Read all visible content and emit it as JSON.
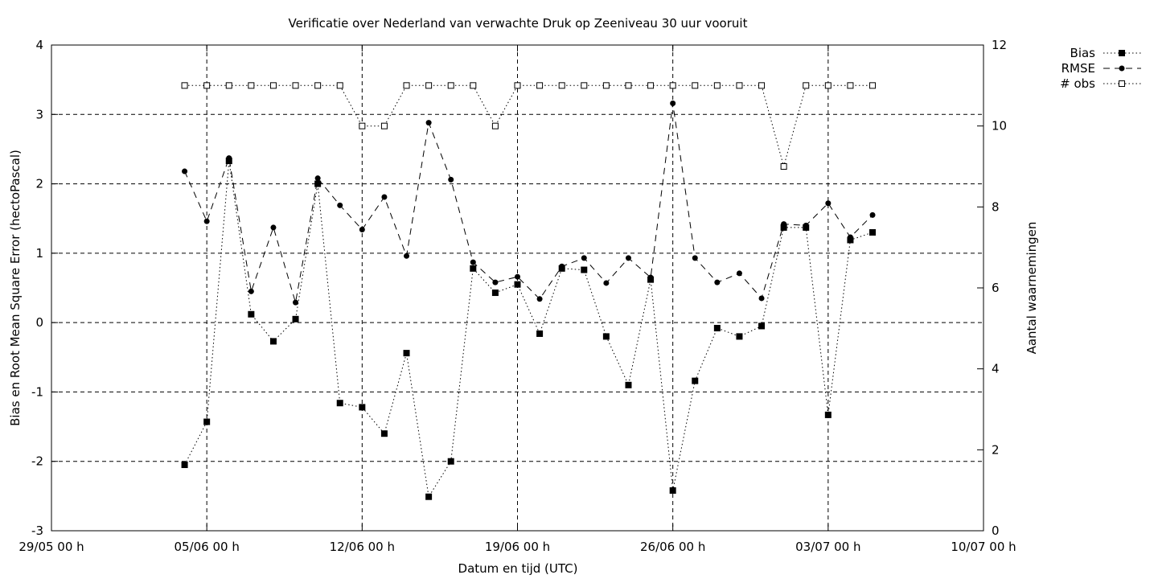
{
  "chart_data": {
    "type": "line",
    "title": "Verificatie over Nederland van verwachte Druk op Zeeniveau 30 uur vooruit",
    "xlabel": "Datum en tijd (UTC)",
    "ylabel": "Bias en Root Mean Square Error (hectoPascal)",
    "y2label": "Aantal waarnemingen",
    "xlim": [
      "2019-05-29",
      "2019-07-10"
    ],
    "ylim": [
      -3,
      4
    ],
    "y2lim": [
      0,
      12
    ],
    "grid": true,
    "legend_position": "top-right outside",
    "x_ticks": [
      {
        "date": "2019-05-29",
        "label": "29/05 00 h",
        "grid": false
      },
      {
        "date": "2019-06-05",
        "label": "05/06 00 h",
        "grid": true
      },
      {
        "date": "2019-06-12",
        "label": "12/06 00 h",
        "grid": true
      },
      {
        "date": "2019-06-19",
        "label": "19/06 00 h",
        "grid": true
      },
      {
        "date": "2019-06-26",
        "label": "26/06 00 h",
        "grid": true
      },
      {
        "date": "2019-07-03",
        "label": "03/07 00 h",
        "grid": true
      },
      {
        "date": "2019-07-10",
        "label": "10/07 00 h",
        "grid": false
      }
    ],
    "y_ticks": [
      {
        "value": -3,
        "label": "-3"
      },
      {
        "value": -2,
        "label": "-2"
      },
      {
        "value": -1,
        "label": "-1"
      },
      {
        "value": 0,
        "label": "0"
      },
      {
        "value": 1,
        "label": "1"
      },
      {
        "value": 2,
        "label": "2"
      },
      {
        "value": 3,
        "label": "3"
      },
      {
        "value": 4,
        "label": "4"
      }
    ],
    "y2_ticks": [
      {
        "value": 0,
        "label": "0"
      },
      {
        "value": 2,
        "label": "2"
      },
      {
        "value": 4,
        "label": "4"
      },
      {
        "value": 6,
        "label": "6"
      },
      {
        "value": 8,
        "label": "8"
      },
      {
        "value": 10,
        "label": "10"
      },
      {
        "value": 12,
        "label": "12"
      }
    ],
    "x": [
      "2019-06-04",
      "2019-06-05",
      "2019-06-06",
      "2019-06-07",
      "2019-06-08",
      "2019-06-09",
      "2019-06-10",
      "2019-06-11",
      "2019-06-12",
      "2019-06-13",
      "2019-06-14",
      "2019-06-15",
      "2019-06-16",
      "2019-06-17",
      "2019-06-18",
      "2019-06-19",
      "2019-06-20",
      "2019-06-21",
      "2019-06-22",
      "2019-06-23",
      "2019-06-24",
      "2019-06-25",
      "2019-06-26",
      "2019-06-27",
      "2019-06-28",
      "2019-06-29",
      "2019-06-30",
      "2019-07-01",
      "2019-07-02",
      "2019-07-03",
      "2019-07-04",
      "2019-07-05"
    ],
    "series": [
      {
        "name": "Bias",
        "axis": "y1",
        "marker": "filled-square",
        "line": "dotted",
        "values": [
          -2.05,
          -1.43,
          2.33,
          0.12,
          -0.27,
          0.05,
          2.0,
          -1.16,
          -1.22,
          -1.6,
          -0.44,
          -2.51,
          -2.0,
          0.78,
          0.43,
          0.55,
          -0.16,
          0.78,
          0.76,
          -0.2,
          -0.9,
          0.62,
          -2.42,
          -0.84,
          -0.08,
          -0.2,
          -0.05,
          1.37,
          1.37,
          -1.33,
          1.19,
          1.3
        ]
      },
      {
        "name": "RMSE",
        "axis": "y1",
        "marker": "filled-circle",
        "line": "dashed",
        "values": [
          2.18,
          1.46,
          2.37,
          0.45,
          1.37,
          0.29,
          2.08,
          1.69,
          1.34,
          1.81,
          0.96,
          2.88,
          2.06,
          0.87,
          0.58,
          0.66,
          0.34,
          0.81,
          0.93,
          0.57,
          0.93,
          0.65,
          3.16,
          0.93,
          0.58,
          0.71,
          0.35,
          1.42,
          1.4,
          1.72,
          1.23,
          1.55
        ]
      },
      {
        "name": "# obs",
        "axis": "y2",
        "marker": "open-square",
        "line": "dotted",
        "values": [
          11,
          11,
          11,
          11,
          11,
          11,
          11,
          11,
          10,
          10,
          11,
          11,
          11,
          11,
          10,
          11,
          11,
          11,
          11,
          11,
          11,
          11,
          11,
          11,
          11,
          11,
          11,
          9,
          11,
          11,
          11,
          11
        ]
      }
    ]
  }
}
